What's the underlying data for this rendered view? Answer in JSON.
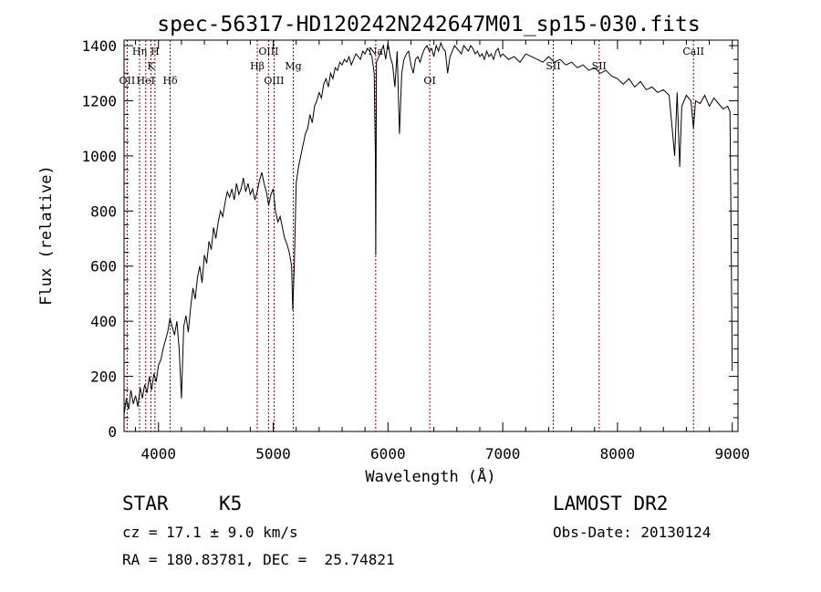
{
  "chart_data": {
    "type": "line",
    "title": "spec-56317-HD120242N242647M01_sp15-030.fits",
    "xlabel": "Wavelength (Å)",
    "ylabel": "Flux (relative)",
    "xlim": [
      3700,
      9050
    ],
    "ylim": [
      0,
      1420
    ],
    "xticks": [
      4000,
      5000,
      6000,
      7000,
      8000,
      9000
    ],
    "yticks": [
      0,
      200,
      400,
      600,
      800,
      1000,
      1200,
      1400
    ],
    "grid": false,
    "line_color": "#000000",
    "marker_color": "#8b0000",
    "series": [
      {
        "values_note": "",
        "x": [
          3700,
          3720,
          3740,
          3760,
          3780,
          3800,
          3820,
          3840,
          3860,
          3880,
          3900,
          3920,
          3940,
          3960,
          3980,
          4000,
          4020,
          4040,
          4060,
          4080,
          4100,
          4120,
          4140,
          4160,
          4180,
          4200,
          4220,
          4240,
          4260,
          4280,
          4300,
          4320,
          4340,
          4360,
          4380,
          4400,
          4420,
          4440,
          4460,
          4480,
          4500,
          4520,
          4540,
          4560,
          4580,
          4600,
          4620,
          4640,
          4660,
          4680,
          4700,
          4720,
          4740,
          4760,
          4780,
          4800,
          4820,
          4840,
          4860,
          4880,
          4900,
          4920,
          4940,
          4960,
          4980,
          5000,
          5020,
          5040,
          5060,
          5080,
          5100,
          5120,
          5140,
          5160,
          5170,
          5183,
          5200,
          5220,
          5240,
          5260,
          5280,
          5300,
          5320,
          5340,
          5360,
          5380,
          5400,
          5420,
          5440,
          5460,
          5480,
          5500,
          5520,
          5540,
          5560,
          5580,
          5600,
          5620,
          5640,
          5660,
          5680,
          5700,
          5720,
          5740,
          5760,
          5780,
          5800,
          5820,
          5840,
          5860,
          5880,
          5890,
          5893,
          5896,
          5900,
          5920,
          5940,
          5960,
          5980,
          6000,
          6020,
          6040,
          6060,
          6080,
          6100,
          6120,
          6140,
          6160,
          6180,
          6200,
          6220,
          6240,
          6260,
          6280,
          6300,
          6320,
          6340,
          6360,
          6380,
          6400,
          6420,
          6440,
          6460,
          6480,
          6500,
          6520,
          6540,
          6560,
          6580,
          6600,
          6620,
          6640,
          6660,
          6680,
          6700,
          6720,
          6740,
          6760,
          6780,
          6800,
          6820,
          6840,
          6860,
          6880,
          6900,
          6920,
          6940,
          6960,
          6980,
          7000,
          7050,
          7100,
          7150,
          7200,
          7250,
          7300,
          7350,
          7400,
          7450,
          7500,
          7550,
          7600,
          7650,
          7700,
          7750,
          7800,
          7850,
          7900,
          7950,
          8000,
          8050,
          8100,
          8150,
          8200,
          8250,
          8300,
          8350,
          8400,
          8450,
          8498,
          8520,
          8542,
          8560,
          8600,
          8640,
          8662,
          8680,
          8720,
          8760,
          8800,
          8840,
          8880,
          8920,
          8960,
          8980,
          8990,
          9000
        ],
        "y": [
          60,
          120,
          80,
          150,
          100,
          130,
          90,
          160,
          120,
          170,
          140,
          200,
          150,
          210,
          180,
          240,
          260,
          300,
          330,
          360,
          410,
          380,
          350,
          400,
          300,
          120,
          380,
          420,
          360,
          450,
          520,
          480,
          560,
          600,
          540,
          640,
          610,
          690,
          660,
          740,
          700,
          760,
          800,
          780,
          830,
          870,
          850,
          880,
          840,
          900,
          860,
          880,
          920,
          870,
          900,
          860,
          880,
          840,
          870,
          910,
          940,
          900,
          870,
          820,
          860,
          880,
          800,
          760,
          780,
          740,
          700,
          680,
          650,
          600,
          440,
          600,
          900,
          960,
          1000,
          1040,
          1080,
          1100,
          1150,
          1120,
          1180,
          1200,
          1230,
          1210,
          1260,
          1280,
          1250,
          1300,
          1280,
          1320,
          1310,
          1340,
          1330,
          1350,
          1340,
          1360,
          1330,
          1350,
          1370,
          1360,
          1350,
          1380,
          1370,
          1390,
          1380,
          1360,
          1300,
          1000,
          640,
          900,
          1340,
          1360,
          1380,
          1400,
          1350,
          1410,
          1360,
          1330,
          1250,
          1380,
          1080,
          1300,
          1350,
          1370,
          1380,
          1330,
          1300,
          1350,
          1360,
          1340,
          1370,
          1390,
          1400,
          1380,
          1390,
          1360,
          1400,
          1380,
          1410,
          1390,
          1380,
          1300,
          1360,
          1380,
          1400,
          1390,
          1380,
          1370,
          1400,
          1390,
          1380,
          1400,
          1390,
          1370,
          1380,
          1360,
          1370,
          1350,
          1380,
          1360,
          1370,
          1350,
          1380,
          1390,
          1360,
          1370,
          1350,
          1360,
          1340,
          1370,
          1360,
          1350,
          1340,
          1360,
          1340,
          1350,
          1330,
          1340,
          1320,
          1330,
          1310,
          1320,
          1300,
          1310,
          1290,
          1280,
          1260,
          1280,
          1250,
          1270,
          1240,
          1250,
          1230,
          1240,
          1220,
          1000,
          1230,
          960,
          1180,
          1220,
          1200,
          1100,
          1200,
          1190,
          1220,
          1180,
          1210,
          1190,
          1170,
          1180,
          1160,
          700,
          220
        ]
      }
    ],
    "lines": [
      {
        "label": "OII",
        "x": 3727
      },
      {
        "label": "Hη",
        "x": 3835
      },
      {
        "label": "HeI",
        "x": 3889
      },
      {
        "label": "K",
        "x": 3934
      },
      {
        "label": "H",
        "x": 3969
      },
      {
        "label": "Hδ",
        "x": 4102
      },
      {
        "label": "Hβ",
        "x": 4861
      },
      {
        "label": "OIII",
        "x": 4959
      },
      {
        "label": "OIII",
        "x": 5007
      },
      {
        "label": "Mg",
        "x": 5175
      },
      {
        "label": "Na",
        "x": 5893
      },
      {
        "label": "OI",
        "x": 6364
      },
      {
        "label": "SII",
        "x": 7440
      },
      {
        "label": "SII",
        "x": 7840
      },
      {
        "label": "CaII",
        "x": 8662
      }
    ]
  },
  "info": {
    "object_type": "STAR",
    "subclass": "K5",
    "survey": "LAMOST DR2",
    "cz": "cz = 17.1 ± 9.0 km/s",
    "obs_date": "Obs-Date: 20130124",
    "coords": "RA = 180.83781, DEC =  25.74821"
  }
}
